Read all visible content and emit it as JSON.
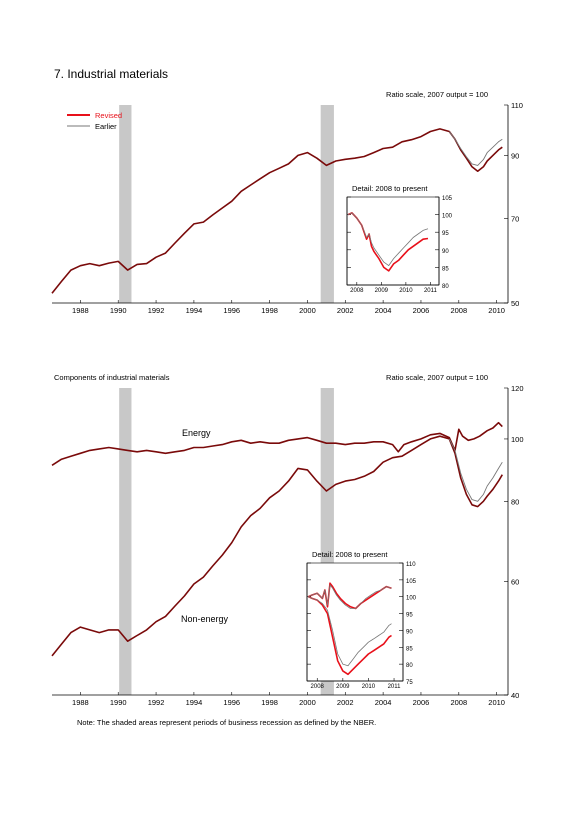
{
  "page_title": "7. Industrial materials",
  "note": "Note: The shaded areas represent periods of business recession as defined by the NBER.",
  "colors": {
    "revised": "#e8101a",
    "earlier": "#777777",
    "recession": "#c8c8c8",
    "dark": "#7a0a0a"
  },
  "chart_data": [
    {
      "type": "line",
      "title": "",
      "scale_note": "Ratio scale, 2007 output = 100",
      "log_scale": true,
      "xlim": [
        1987.0,
        2011.1
      ],
      "ylim": [
        50,
        110
      ],
      "x_ticks": [
        1988,
        1990,
        1992,
        1994,
        1996,
        1998,
        2000,
        2002,
        2004,
        2006,
        2008,
        2010
      ],
      "y_ticks": [
        50,
        70,
        90,
        110
      ],
      "legend": {
        "position": "top-left",
        "items": [
          "Revised",
          "Earlier"
        ]
      },
      "recessions": [
        [
          1990.55,
          1991.2
        ],
        [
          2001.2,
          2001.9
        ]
      ],
      "series": [
        {
          "name": "Revised",
          "x": [
            1987.0,
            1987.5,
            1988.0,
            1988.5,
            1989.0,
            1989.5,
            1990.0,
            1990.5,
            1991.0,
            1991.5,
            1992.0,
            1992.5,
            1993.0,
            1993.5,
            1994.0,
            1994.5,
            1995.0,
            1995.5,
            1996.0,
            1996.5,
            1997.0,
            1997.5,
            1998.0,
            1998.5,
            1999.0,
            1999.5,
            2000.0,
            2000.5,
            2001.0,
            2001.5,
            2002.0,
            2002.5,
            2003.0,
            2003.5,
            2004.0,
            2004.5,
            2005.0,
            2005.5,
            2006.0,
            2006.5,
            2007.0,
            2007.5,
            2008.0,
            2008.3,
            2008.6,
            2008.9,
            2009.2,
            2009.5,
            2009.8,
            2010.0,
            2010.3,
            2010.6,
            2010.8
          ],
          "y": [
            52,
            54.5,
            57,
            58,
            58.5,
            58,
            58.6,
            59,
            57,
            58.3,
            58.5,
            60,
            61,
            63.5,
            66,
            68.5,
            69,
            71,
            73,
            75,
            78,
            80,
            82,
            84,
            85.5,
            87,
            90,
            91,
            89,
            86.5,
            88,
            88.6,
            89,
            89.6,
            91,
            92.5,
            93,
            95,
            95.8,
            97,
            99,
            100,
            99,
            96,
            92,
            89,
            86,
            84.5,
            86,
            88,
            90,
            92,
            93
          ]
        },
        {
          "name": "Earlier",
          "x": [
            2008.0,
            2008.3,
            2008.6,
            2008.9,
            2009.2,
            2009.5,
            2009.8,
            2010.0,
            2010.3,
            2010.6,
            2010.8
          ],
          "y": [
            99,
            96,
            92.5,
            89.5,
            87,
            86.5,
            88.5,
            91,
            93,
            95,
            96
          ]
        }
      ],
      "inset": {
        "title": "Detail: 2008 to present",
        "xlim": [
          2007.6,
          2011.35
        ],
        "ylim": [
          80,
          105
        ],
        "x_ticks": [
          2008,
          2009,
          2010,
          2011
        ],
        "y_ticks": [
          80,
          85,
          90,
          95,
          100,
          105
        ],
        "series": [
          {
            "name": "Revised",
            "x": [
              2007.65,
              2007.8,
              2008.0,
              2008.2,
              2008.4,
              2008.5,
              2008.6,
              2008.7,
              2008.9,
              2009.1,
              2009.3,
              2009.5,
              2009.7,
              2009.9,
              2010.1,
              2010.3,
              2010.5,
              2010.7,
              2010.9
            ],
            "y": [
              100,
              100.5,
              99,
              97,
              93,
              94.5,
              91,
              89.5,
              87.5,
              85,
              84,
              86,
              87,
              88.5,
              90,
              91,
              92,
              93,
              93.2
            ]
          },
          {
            "name": "Earlier",
            "x": [
              2007.65,
              2007.8,
              2008.0,
              2008.2,
              2008.4,
              2008.5,
              2008.6,
              2008.7,
              2008.9,
              2009.1,
              2009.3,
              2009.5,
              2009.7,
              2009.9,
              2010.1,
              2010.3,
              2010.5,
              2010.7,
              2010.9
            ],
            "y": [
              100,
              100.5,
              99,
              97,
              93.5,
              94.5,
              92,
              90.5,
              88.5,
              86.5,
              85.5,
              87.5,
              89,
              90.5,
              92,
              93.5,
              94.5,
              95.5,
              96
            ]
          }
        ]
      }
    },
    {
      "type": "line",
      "title": "Components of industrial materials",
      "scale_note": "Ratio scale, 2007 output = 100",
      "log_scale": true,
      "xlim": [
        1987.0,
        2011.1
      ],
      "ylim": [
        40,
        120
      ],
      "x_ticks": [
        1988,
        1990,
        1992,
        1994,
        1996,
        1998,
        2000,
        2002,
        2004,
        2006,
        2008,
        2010
      ],
      "y_ticks": [
        40,
        60,
        80,
        100,
        120
      ],
      "recessions": [
        [
          1990.55,
          1991.2
        ],
        [
          2001.2,
          2001.9
        ]
      ],
      "annotations": [
        {
          "text": "Energy",
          "x": 1994.5,
          "y": 103
        },
        {
          "text": "Non-energy",
          "x": 1994.3,
          "y": 53
        }
      ],
      "series": [
        {
          "name": "Energy revised",
          "x": [
            1987.0,
            1987.5,
            1988.0,
            1988.5,
            1989.0,
            1989.5,
            1990.0,
            1990.5,
            1991.0,
            1991.5,
            1992.0,
            1992.5,
            1993.0,
            1993.5,
            1994.0,
            1994.5,
            1995.0,
            1995.5,
            1996.0,
            1996.5,
            1997.0,
            1997.5,
            1998.0,
            1998.5,
            1999.0,
            1999.5,
            2000.0,
            2000.5,
            2001.0,
            2001.5,
            2002.0,
            2002.5,
            2003.0,
            2003.5,
            2004.0,
            2004.5,
            2005.0,
            2005.3,
            2005.6,
            2006.0,
            2006.5,
            2007.0,
            2007.5,
            2008.0,
            2008.3,
            2008.5,
            2008.7,
            2009.0,
            2009.3,
            2009.6,
            2010.0,
            2010.3,
            2010.6,
            2010.8
          ],
          "y": [
            91,
            93,
            94,
            95,
            96,
            96.5,
            97,
            96.5,
            96,
            95.5,
            96,
            95.5,
            95,
            95.5,
            96,
            97,
            97,
            97.5,
            98,
            99,
            99.5,
            98.5,
            99,
            98.5,
            98.5,
            99.5,
            100,
            100.5,
            99.5,
            98.5,
            98.5,
            98,
            98.5,
            98.5,
            99,
            99,
            98,
            95.5,
            98,
            99,
            100,
            101.5,
            102,
            100.5,
            96,
            103.5,
            101,
            99.5,
            100,
            101,
            103,
            104,
            106,
            104.5
          ]
        },
        {
          "name": "Non-energy revised",
          "x": [
            1987.0,
            1987.5,
            1988.0,
            1988.5,
            1989.0,
            1989.5,
            1990.0,
            1990.5,
            1991.0,
            1991.5,
            1992.0,
            1992.5,
            1993.0,
            1993.5,
            1994.0,
            1994.5,
            1995.0,
            1995.5,
            1996.0,
            1996.5,
            1997.0,
            1997.5,
            1998.0,
            1998.5,
            1999.0,
            1999.5,
            2000.0,
            2000.5,
            2001.0,
            2001.5,
            2002.0,
            2002.5,
            2003.0,
            2003.5,
            2004.0,
            2004.5,
            2005.0,
            2005.5,
            2006.0,
            2006.5,
            2007.0,
            2007.5,
            2008.0,
            2008.3,
            2008.6,
            2008.9,
            2009.2,
            2009.5,
            2009.8,
            2010.0,
            2010.3,
            2010.6,
            2010.8
          ],
          "y": [
            46,
            48,
            50,
            51,
            50.5,
            50,
            50.5,
            50.5,
            48.5,
            49.5,
            50.5,
            52,
            53,
            55,
            57,
            59.5,
            61,
            63.5,
            66,
            69,
            73,
            76,
            78,
            81,
            83,
            86,
            90,
            89.5,
            86,
            83,
            85,
            86,
            86.5,
            87.5,
            89,
            92,
            93.5,
            94,
            96,
            98,
            100,
            101,
            100,
            95,
            87,
            82,
            79,
            78.5,
            80,
            81.5,
            83.5,
            86,
            88
          ]
        },
        {
          "name": "Non-energy earlier",
          "x": [
            2008.0,
            2008.3,
            2008.6,
            2008.9,
            2009.2,
            2009.5,
            2009.8,
            2010.0,
            2010.3,
            2010.6,
            2010.8
          ],
          "y": [
            100,
            96,
            88.5,
            83.5,
            80.5,
            80,
            82,
            84.5,
            87,
            90,
            92
          ]
        }
      ],
      "inset": {
        "title": "Detail: 2008 to present",
        "xlim": [
          2007.6,
          2011.35
        ],
        "ylim": [
          75,
          110
        ],
        "x_ticks": [
          2008,
          2009,
          2010,
          2011
        ],
        "y_ticks": [
          75,
          80,
          85,
          90,
          95,
          100,
          105,
          110
        ],
        "series": [
          {
            "name": "Energy revised",
            "x": [
              2007.65,
              2007.8,
              2008.0,
              2008.2,
              2008.3,
              2008.4,
              2008.5,
              2008.6,
              2008.75,
              2008.9,
              2009.1,
              2009.3,
              2009.5,
              2009.7,
              2009.9,
              2010.1,
              2010.3,
              2010.5,
              2010.7,
              2010.9
            ],
            "y": [
              100,
              100.5,
              101,
              99.5,
              102,
              97,
              104,
              103,
              101,
              99.5,
              98,
              97,
              96.5,
              98,
              99,
              100,
              101,
              102,
              103,
              102.5
            ]
          },
          {
            "name": "Energy earlier",
            "x": [
              2007.65,
              2007.8,
              2008.0,
              2008.2,
              2008.3,
              2008.4,
              2008.5,
              2008.6,
              2008.75,
              2008.9,
              2009.1,
              2009.3,
              2009.5,
              2009.7,
              2009.9,
              2010.1,
              2010.3,
              2010.5,
              2010.7,
              2010.9
            ],
            "y": [
              100,
              100.5,
              101,
              99.5,
              102,
              97.5,
              103.5,
              102.5,
              100.5,
              99,
              97.5,
              96.5,
              96.5,
              98,
              99.5,
              100.5,
              101.5,
              102,
              103,
              102.5
            ]
          },
          {
            "name": "Non-energy revised",
            "x": [
              2007.65,
              2007.8,
              2008.0,
              2008.2,
              2008.4,
              2008.6,
              2008.8,
              2009.0,
              2009.2,
              2009.4,
              2009.6,
              2009.8,
              2010.0,
              2010.2,
              2010.4,
              2010.6,
              2010.8,
              2010.9
            ],
            "y": [
              100,
              99.5,
              99,
              97.5,
              95,
              88,
              81,
              78,
              77,
              78.5,
              80,
              81.5,
              83,
              84,
              85,
              86,
              88,
              88.5
            ]
          },
          {
            "name": "Non-energy earlier",
            "x": [
              2007.65,
              2007.8,
              2008.0,
              2008.2,
              2008.4,
              2008.6,
              2008.8,
              2009.0,
              2009.2,
              2009.4,
              2009.6,
              2009.8,
              2010.0,
              2010.2,
              2010.4,
              2010.6,
              2010.8,
              2010.9
            ],
            "y": [
              100,
              99.5,
              99,
              98,
              96,
              90,
              83,
              80,
              79.5,
              81.5,
              83.5,
              85,
              86.5,
              87.5,
              88.5,
              89.5,
              91.5,
              92
            ]
          }
        ]
      }
    }
  ]
}
